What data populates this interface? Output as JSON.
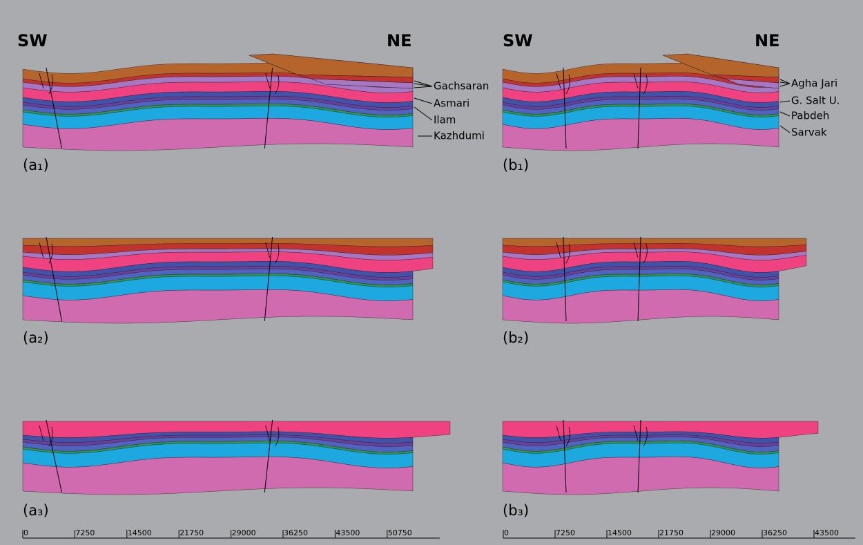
{
  "columns": [
    {
      "sw": "SW",
      "ne": "NE",
      "formations": [
        "Gachsaran",
        "Asmari",
        "Ilam",
        "Kazhdumi"
      ],
      "panels": [
        "(a₁)",
        "(a₂)",
        "(a₃)"
      ],
      "scale_ticks": [
        0,
        7250,
        14500,
        21750,
        29000,
        36250,
        43500,
        50750
      ]
    },
    {
      "sw": "SW",
      "ne": "NE",
      "formations": [
        "Agha Jari",
        "G. Salt U.",
        "Pabdeh",
        "Sarvak"
      ],
      "panels": [
        "(b₁)",
        "(b₂)",
        "(b₃)"
      ],
      "scale_ticks": [
        0,
        7250,
        14500,
        21750,
        29000,
        36250,
        43500
      ]
    }
  ]
}
